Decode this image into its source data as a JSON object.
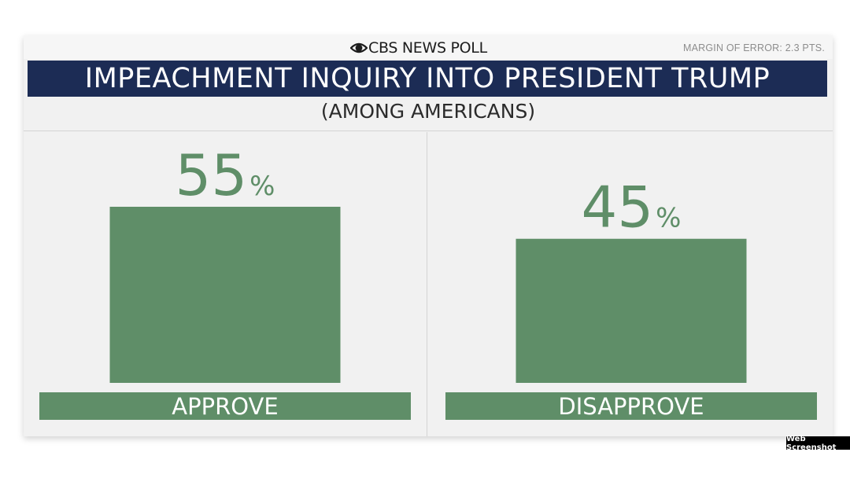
{
  "header": {
    "logo_text": "CBS NEWS POLL",
    "margin_of_error": "MARGIN OF ERROR: 2.3 PTS."
  },
  "chart_data": {
    "type": "bar",
    "title": "IMPEACHMENT INQUIRY INTO PRESIDENT TRUMP",
    "subtitle": "(AMONG AMERICANS)",
    "categories": [
      "APPROVE",
      "DISAPPROVE"
    ],
    "values": [
      55,
      45
    ],
    "value_labels": [
      "55",
      "45"
    ],
    "unit": "%",
    "ylim": [
      0,
      100
    ],
    "grid": false,
    "bar_color": "#5f8e68",
    "label_bar_color": "#5f8e68",
    "value_text_color": "#5f8e68",
    "title_bar_color": "#1c2c55"
  },
  "watermark": "Web Screenshot"
}
